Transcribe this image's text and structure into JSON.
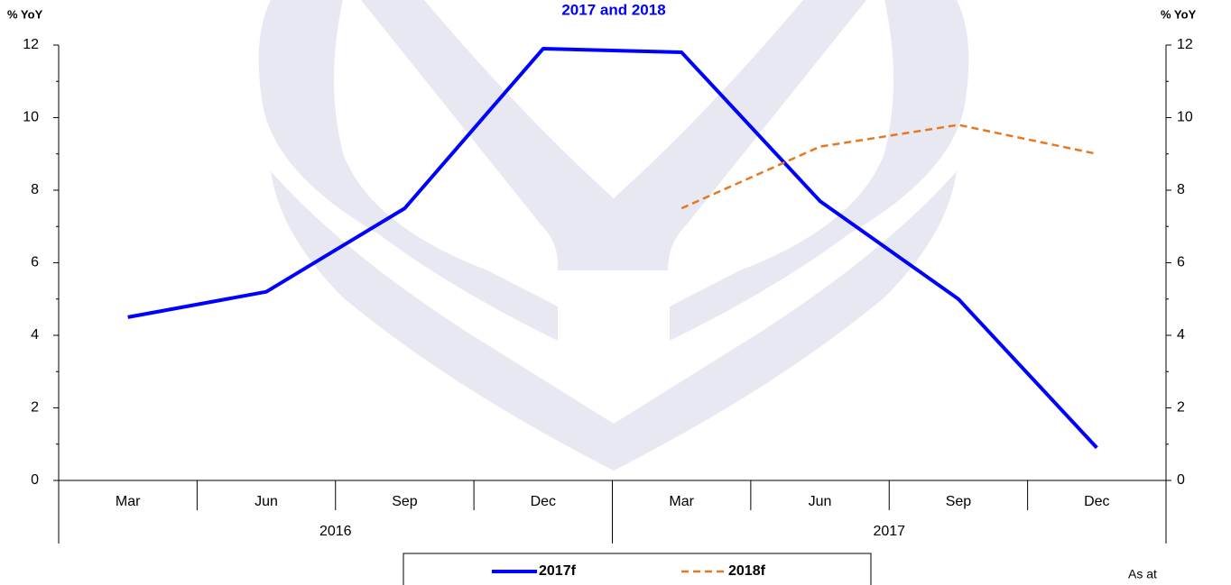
{
  "chart_data": {
    "type": "line",
    "title": "2017 and 2018",
    "y_label": "% YoY",
    "y2_label": "% YoY",
    "categories": [
      "Mar",
      "Jun",
      "Sep",
      "Dec",
      "Mar",
      "Jun",
      "Sep",
      "Dec"
    ],
    "category_groups": [
      "2016",
      "2017"
    ],
    "series": [
      {
        "name": "2017f",
        "color": "#0000ff",
        "style": "solid",
        "values": [
          4.5,
          5.2,
          7.5,
          11.9,
          11.8,
          7.7,
          5.0,
          0.9
        ]
      },
      {
        "name": "2018f",
        "color": "#e87722",
        "style": "dashed",
        "values": [
          null,
          null,
          null,
          null,
          7.5,
          9.2,
          9.8,
          9.0
        ]
      }
    ],
    "ylim": [
      0,
      12
    ],
    "yticks": [
      0,
      2,
      4,
      6,
      8,
      10,
      12
    ],
    "yminorticks": [
      1,
      3,
      5,
      7,
      9,
      11
    ],
    "y2lim": [
      0,
      12
    ],
    "y2ticks": [
      0,
      2,
      4,
      6,
      8,
      10,
      12
    ],
    "grid": false,
    "footnote": "As at"
  }
}
